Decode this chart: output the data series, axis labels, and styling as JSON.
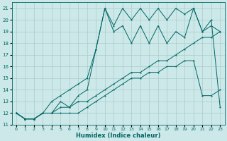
{
  "xlabel": "Humidex (Indice chaleur)",
  "background_color": "#cce8e8",
  "grid_color": "#aacccc",
  "line_color": "#006666",
  "xlim": [
    -0.5,
    23.5
  ],
  "ylim": [
    11,
    21.5
  ],
  "xticks": [
    0,
    1,
    2,
    3,
    4,
    5,
    6,
    7,
    8,
    9,
    10,
    11,
    12,
    13,
    14,
    15,
    16,
    17,
    18,
    19,
    20,
    21,
    22,
    23
  ],
  "yticks": [
    11,
    12,
    13,
    14,
    15,
    16,
    17,
    18,
    19,
    20,
    21
  ],
  "line_bottom_x": [
    0,
    1,
    2,
    3,
    4,
    5,
    6,
    7,
    8,
    9,
    10,
    11,
    12,
    13,
    14,
    15,
    16,
    17,
    18,
    19,
    20,
    21,
    22,
    23
  ],
  "line_bottom_y": [
    12,
    11.5,
    11.5,
    12,
    12,
    12,
    12,
    12,
    12.5,
    13,
    13.5,
    14,
    14.5,
    15,
    15,
    15.5,
    15.5,
    16,
    16,
    16.5,
    16.5,
    13.5,
    13.5,
    14
  ],
  "line_mid_x": [
    0,
    1,
    2,
    3,
    4,
    5,
    6,
    7,
    8,
    9,
    10,
    11,
    12,
    13,
    14,
    15,
    16,
    17,
    18,
    19,
    20,
    21,
    22,
    23
  ],
  "line_mid_y": [
    12,
    11.5,
    11.5,
    12,
    12,
    12.5,
    12.5,
    13,
    13,
    13.5,
    14,
    14.5,
    15,
    15.5,
    15.5,
    16,
    16.5,
    16.5,
    17,
    17.5,
    18,
    18.5,
    18.5,
    19
  ],
  "line_zigzag_x": [
    0,
    1,
    2,
    3,
    4,
    5,
    6,
    7,
    8,
    9,
    10,
    11,
    12,
    13,
    14,
    15,
    16,
    17,
    18,
    19,
    20,
    21,
    22,
    23
  ],
  "line_zigzag_y": [
    12,
    11.5,
    11.5,
    12,
    12,
    13,
    12.5,
    13.5,
    14,
    17.5,
    21,
    19.5,
    21,
    20,
    21,
    20,
    21,
    20,
    21,
    20.5,
    21,
    19,
    20,
    12.5
  ],
  "line_upper_x": [
    0,
    1,
    2,
    3,
    4,
    5,
    6,
    7,
    8,
    9,
    10,
    11,
    12,
    13,
    14,
    15,
    16,
    17,
    18,
    19,
    20,
    21,
    22,
    23
  ],
  "line_upper_y": [
    12,
    11.5,
    11.5,
    12,
    13,
    13.5,
    14,
    14.5,
    15,
    17.5,
    21,
    19,
    19.5,
    18,
    19.5,
    18,
    19.5,
    18,
    19,
    18.5,
    21,
    19,
    19.5,
    19
  ]
}
